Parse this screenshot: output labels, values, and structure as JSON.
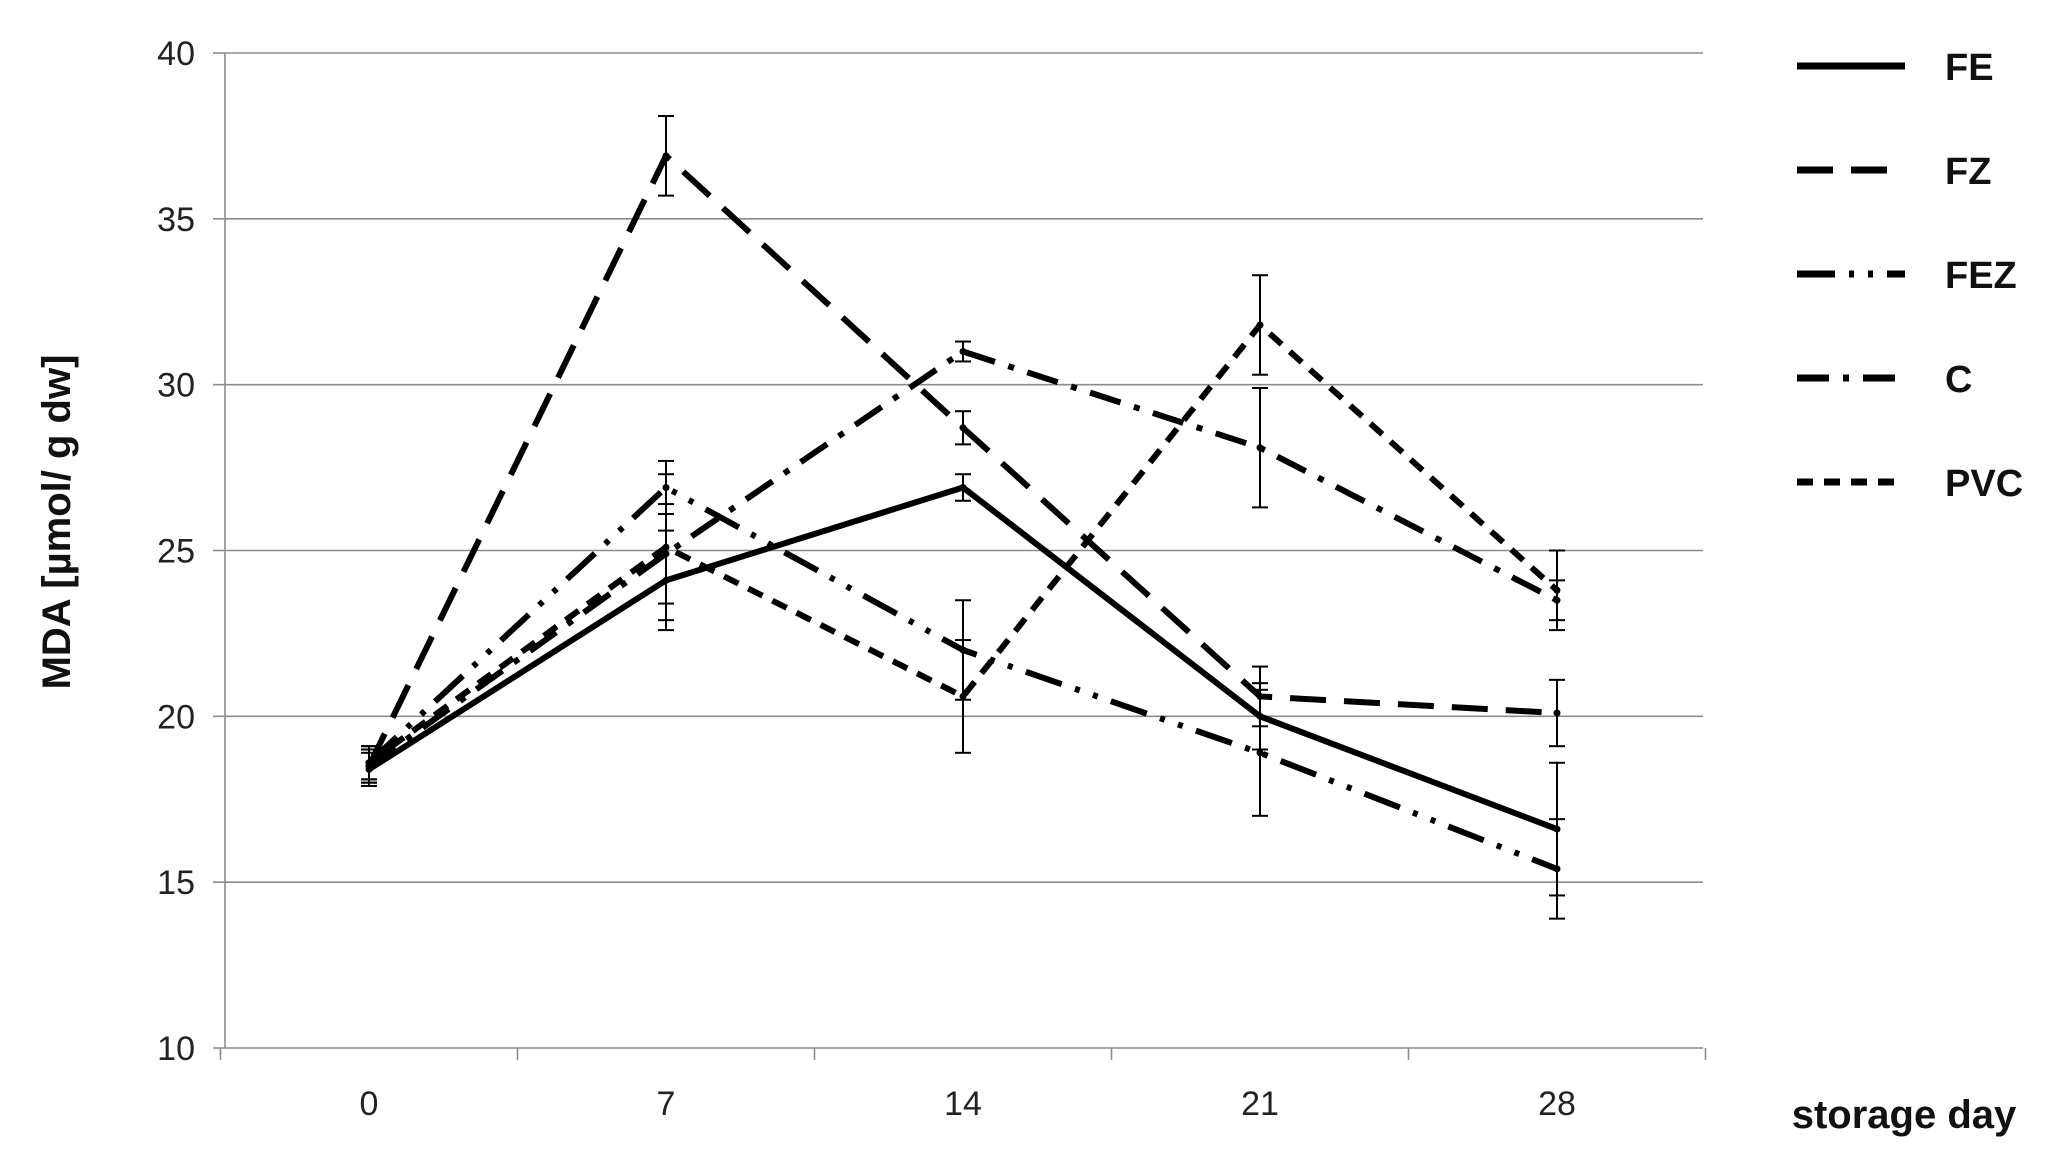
{
  "chart_data": {
    "type": "line",
    "title": "",
    "xlabel": "storage day",
    "ylabel": "MDA [µmol/ g dw]",
    "x": [
      0,
      7,
      14,
      21,
      28
    ],
    "x_tick_labels": [
      "0",
      "7",
      "14",
      "21",
      "28"
    ],
    "ylim": [
      10,
      40
    ],
    "y_ticks": [
      10,
      15,
      20,
      25,
      30,
      35,
      40
    ],
    "y_tick_labels": [
      "10",
      "15",
      "20",
      "25",
      "30",
      "35",
      "40"
    ],
    "grid": "horizontal",
    "legend_position": "right",
    "series": [
      {
        "name": "FE",
        "style": "solid",
        "values": [
          18.4,
          24.1,
          26.9,
          20.0,
          16.6
        ],
        "errors": [
          0.5,
          1.5,
          0.4,
          1.0,
          2.0
        ]
      },
      {
        "name": "FZ",
        "style": "long-dash",
        "values": [
          18.5,
          36.9,
          28.7,
          20.6,
          20.1
        ],
        "errors": [
          0.5,
          1.2,
          0.5,
          0.9,
          1.0
        ]
      },
      {
        "name": "FEZ",
        "style": "dash-dot-dot",
        "values": [
          18.6,
          26.9,
          22.0,
          18.9,
          15.4
        ],
        "errors": [
          0.5,
          0.8,
          1.5,
          1.9,
          1.5
        ]
      },
      {
        "name": "C",
        "style": "dash-dot",
        "values": [
          18.5,
          24.9,
          31.0,
          28.1,
          23.5
        ],
        "errors": [
          0.5,
          1.5,
          0.3,
          1.8,
          0.6
        ]
      },
      {
        "name": "PVC",
        "style": "short-dash",
        "values": [
          18.6,
          25.1,
          20.6,
          31.8,
          23.8
        ],
        "errors": [
          0.5,
          2.2,
          1.7,
          1.5,
          1.2
        ]
      }
    ]
  }
}
